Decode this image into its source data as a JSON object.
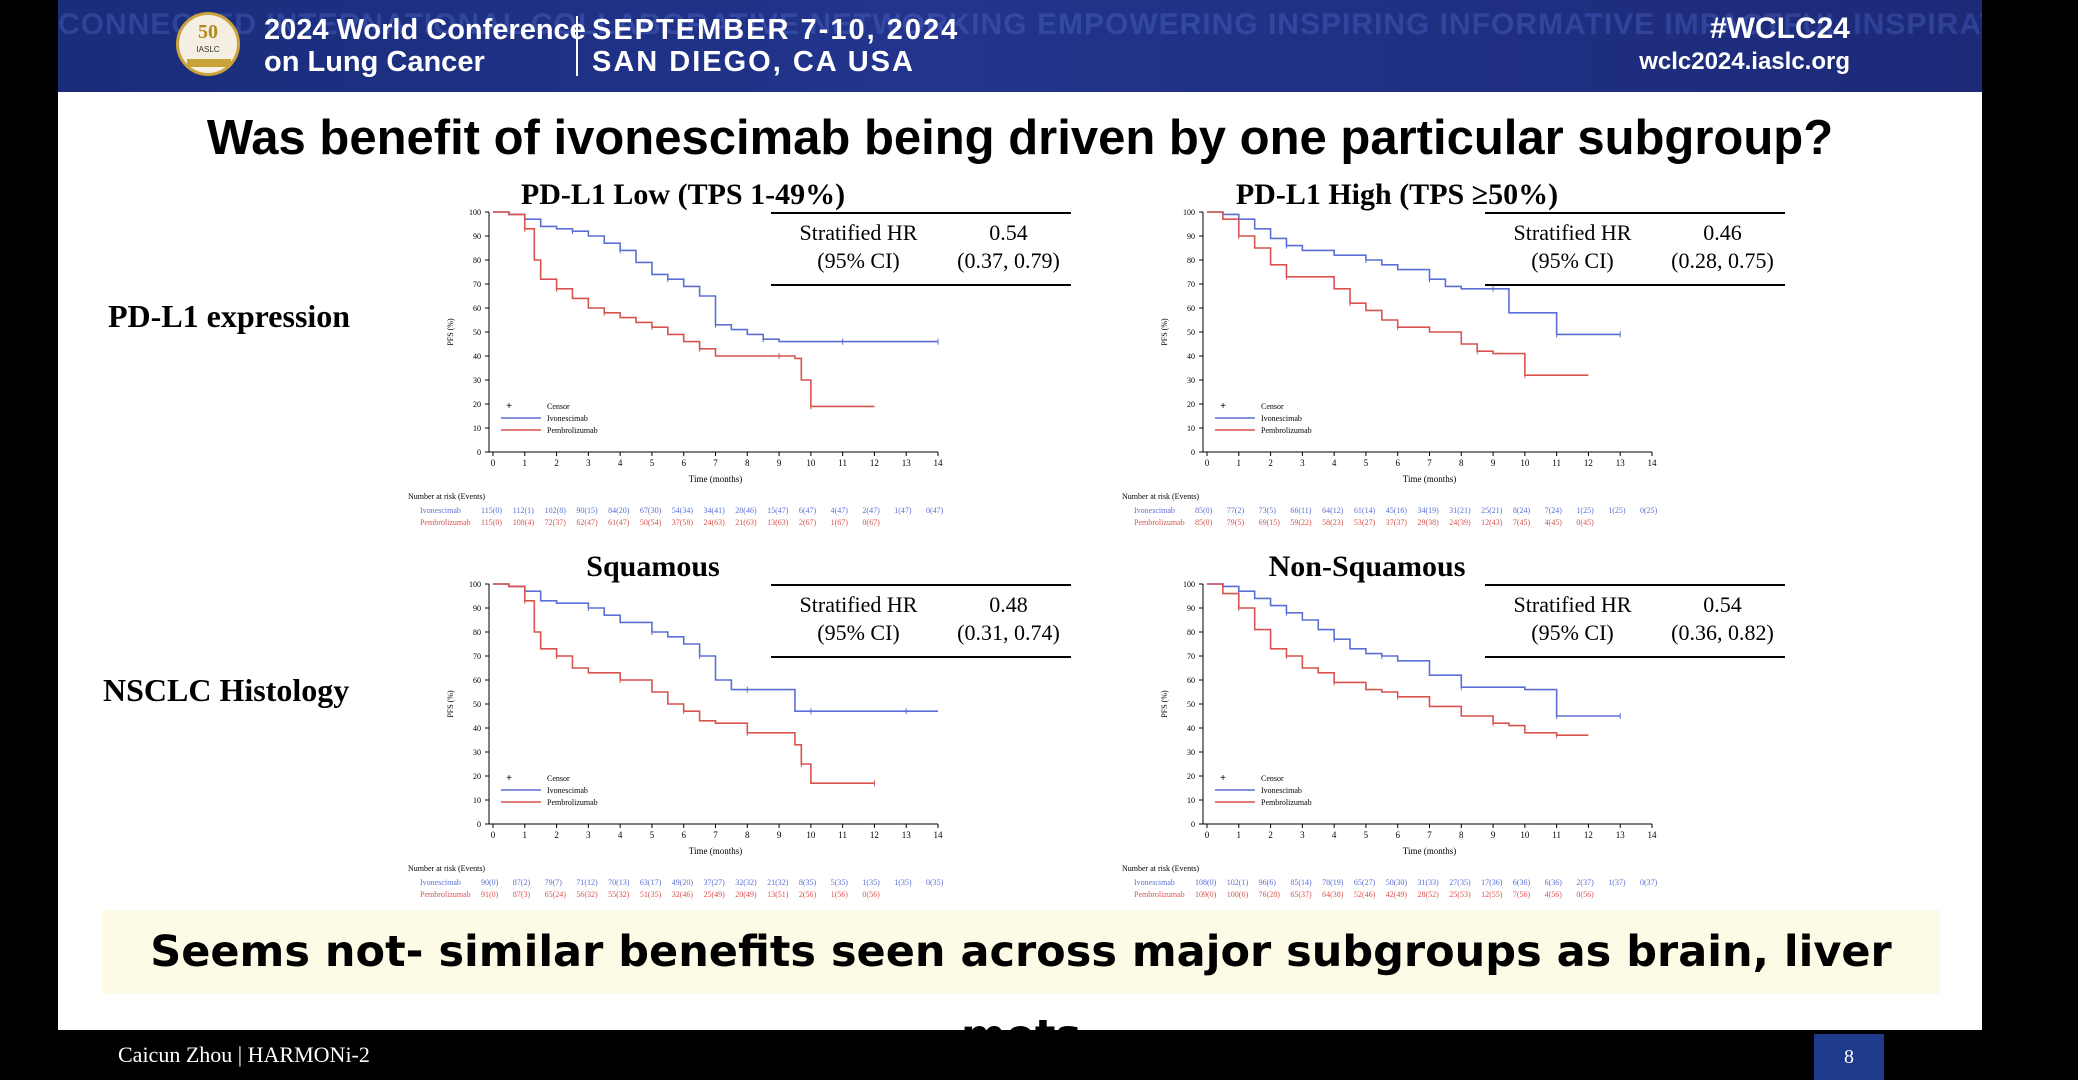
{
  "banner": {
    "watermark": "CONNECTED INTERNATIONAL COLLABORATIVE NETWORKING EMPOWERING INSPIRING INFORMATIVE IMPACTFUL INSPIRATIONAL INFORMATIVE MULTIDISCIPLINARY",
    "logo_number": "50",
    "logo_text": "IASLC",
    "conference_line1": "2024 World Conference",
    "conference_line2": "on Lung Cancer",
    "date": "SEPTEMBER 7-10, 2024",
    "location": "SAN DIEGO, CA USA",
    "hashtag": "#WCLC24",
    "website": "wclc2024.iaslc.org"
  },
  "slide": {
    "title": "Was benefit of ivonescimab being driven by one particular subgroup?",
    "row_labels": [
      "PD-L1 expression",
      "NSCLC Histology"
    ],
    "summary": "Seems not- similar benefits seen across major subgroups as brain, liver mets"
  },
  "footer": {
    "author": "Caicun Zhou | HARMONi-2",
    "page": "8"
  },
  "colors": {
    "ivonescimab": "#5b6fd6",
    "pembrolizumab": "#d9534f",
    "banner": "#22348c"
  },
  "chart_data": [
    {
      "type": "line",
      "title": "PD-L1 Low (TPS 1-49%)",
      "hr_label": "Stratified HR",
      "ci_label": "(95% CI)",
      "hr": "0.54",
      "ci": "(0.37, 0.79)",
      "xlabel": "Time (months)",
      "ylabel": "PFS (%)",
      "xlim": [
        0,
        14
      ],
      "ylim": [
        0,
        100
      ],
      "xticks": [
        "0",
        "1",
        "2",
        "3",
        "4",
        "5",
        "6",
        "7",
        "8",
        "9",
        "10",
        "11",
        "12",
        "13",
        "14"
      ],
      "yticks": [
        "0",
        "10",
        "20",
        "30",
        "40",
        "50",
        "60",
        "70",
        "80",
        "90",
        "100"
      ],
      "legend": [
        "Censor",
        "Ivonescimab",
        "Pembrolizumab"
      ],
      "series": [
        {
          "name": "Ivonescimab",
          "x": [
            0,
            0.5,
            1,
            1.5,
            2,
            2.5,
            3,
            3.5,
            4,
            4.5,
            5,
            5.5,
            6,
            6.5,
            7,
            7.5,
            8,
            8.5,
            9,
            10,
            11,
            12,
            13,
            14
          ],
          "y": [
            100,
            99,
            97,
            94,
            93,
            92,
            90,
            87,
            84,
            79,
            74,
            72,
            69,
            65,
            53,
            51,
            49,
            47,
            46,
            46,
            46,
            46,
            46,
            46
          ]
        },
        {
          "name": "Pembrolizumab",
          "x": [
            0,
            0.5,
            1,
            1.3,
            1.5,
            2,
            2.5,
            3,
            3.5,
            4,
            4.5,
            5,
            5.5,
            6,
            6.5,
            7,
            8,
            9,
            9.5,
            9.7,
            10,
            11,
            12
          ],
          "y": [
            100,
            99,
            93,
            80,
            72,
            68,
            64,
            60,
            58,
            56,
            54,
            52,
            49,
            46,
            43,
            40,
            40,
            40,
            39,
            30,
            19,
            19,
            19
          ]
        }
      ],
      "risk_title": "Number at risk (Events)",
      "risk": [
        {
          "name": "Ivonescimab",
          "values": [
            "115(0)",
            "112(1)",
            "102(8)",
            "90(15)",
            "84(20)",
            "67(30)",
            "54(34)",
            "34(41)",
            "28(46)",
            "15(47)",
            "6(47)",
            "4(47)",
            "2(47)",
            "1(47)",
            "0(47)"
          ]
        },
        {
          "name": "Pembrolizumab",
          "values": [
            "115(0)",
            "108(4)",
            "72(37)",
            "62(47)",
            "61(47)",
            "50(54)",
            "37(58)",
            "24(63)",
            "21(63)",
            "13(63)",
            "2(67)",
            "1(67)",
            "0(67)"
          ]
        }
      ]
    },
    {
      "type": "line",
      "title": "PD-L1 High (TPS ≥50%)",
      "hr_label": "Stratified HR",
      "ci_label": "(95% CI)",
      "hr": "0.46",
      "ci": "(0.28, 0.75)",
      "xlabel": "Time (months)",
      "ylabel": "PFS (%)",
      "xlim": [
        0,
        14
      ],
      "ylim": [
        0,
        100
      ],
      "xticks": [
        "0",
        "1",
        "2",
        "3",
        "4",
        "5",
        "6",
        "7",
        "8",
        "9",
        "10",
        "11",
        "12",
        "13",
        "14"
      ],
      "yticks": [
        "0",
        "10",
        "20",
        "30",
        "40",
        "50",
        "60",
        "70",
        "80",
        "90",
        "100"
      ],
      "legend": [
        "Censor",
        "Ivonescimab",
        "Pembrolizumab"
      ],
      "series": [
        {
          "name": "Ivonescimab",
          "x": [
            0,
            0.5,
            1,
            1.5,
            2,
            2.5,
            3,
            4,
            5,
            5.5,
            6,
            7,
            7.5,
            8,
            9,
            9.5,
            10,
            11,
            11.5,
            12,
            13
          ],
          "y": [
            100,
            99,
            97,
            93,
            89,
            86,
            84,
            82,
            80,
            78,
            76,
            72,
            69,
            68,
            68,
            58,
            58,
            49,
            49,
            49,
            49
          ]
        },
        {
          "name": "Pembrolizumab",
          "x": [
            0,
            0.5,
            1,
            1.5,
            2,
            2.5,
            3,
            4,
            4.5,
            5,
            5.5,
            6,
            7,
            8,
            8.5,
            9,
            9.5,
            10,
            11,
            12
          ],
          "y": [
            100,
            97,
            90,
            85,
            78,
            73,
            73,
            68,
            62,
            59,
            55,
            52,
            50,
            45,
            42,
            41,
            41,
            32,
            32,
            32
          ]
        }
      ],
      "risk_title": "Number at risk (Events)",
      "risk": [
        {
          "name": "Ivonescimab",
          "values": [
            "85(0)",
            "77(2)",
            "73(5)",
            "66(11)",
            "64(12)",
            "61(14)",
            "45(16)",
            "34(19)",
            "31(21)",
            "25(21)",
            "8(24)",
            "7(24)",
            "1(25)",
            "1(25)",
            "0(25)"
          ]
        },
        {
          "name": "Pembrolizumab",
          "values": [
            "85(0)",
            "79(5)",
            "69(15)",
            "59(22)",
            "58(23)",
            "53(27)",
            "37(37)",
            "29(38)",
            "24(39)",
            "12(43)",
            "7(45)",
            "4(45)",
            "0(45)"
          ]
        }
      ]
    },
    {
      "type": "line",
      "title": "Squamous",
      "hr_label": "Stratified HR",
      "ci_label": "(95% CI)",
      "hr": "0.48",
      "ci": "(0.31, 0.74)",
      "xlabel": "Time (months)",
      "ylabel": "PFS (%)",
      "xlim": [
        0,
        14
      ],
      "ylim": [
        0,
        100
      ],
      "xticks": [
        "0",
        "1",
        "2",
        "3",
        "4",
        "5",
        "6",
        "7",
        "8",
        "9",
        "10",
        "11",
        "12",
        "13",
        "14"
      ],
      "yticks": [
        "0",
        "10",
        "20",
        "30",
        "40",
        "50",
        "60",
        "70",
        "80",
        "90",
        "100"
      ],
      "legend": [
        "Censor",
        "Ivonescimab",
        "Pembrolizumab"
      ],
      "series": [
        {
          "name": "Ivonescimab",
          "x": [
            0,
            0.5,
            1,
            1.5,
            2,
            3,
            3.5,
            4,
            5,
            5.5,
            6,
            6.5,
            7,
            7.5,
            8,
            9,
            9.5,
            10,
            11,
            12,
            13,
            14
          ],
          "y": [
            100,
            99,
            97,
            93,
            92,
            90,
            87,
            84,
            80,
            78,
            75,
            70,
            60,
            56,
            56,
            56,
            47,
            47,
            47,
            47,
            47,
            47
          ]
        },
        {
          "name": "Pembrolizumab",
          "x": [
            0,
            0.5,
            1,
            1.3,
            1.5,
            2,
            2.5,
            3,
            4,
            5,
            5.5,
            6,
            6.5,
            7,
            8,
            9,
            9.5,
            9.7,
            10,
            11,
            12
          ],
          "y": [
            100,
            99,
            93,
            80,
            73,
            70,
            65,
            63,
            60,
            55,
            50,
            47,
            43,
            42,
            38,
            38,
            33,
            25,
            17,
            17,
            17
          ]
        }
      ],
      "risk_title": "Number at risk (Events)",
      "risk": [
        {
          "name": "Ivonescimab",
          "values": [
            "90(0)",
            "87(2)",
            "79(7)",
            "71(12)",
            "70(13)",
            "63(17)",
            "49(20)",
            "37(27)",
            "32(32)",
            "21(32)",
            "8(35)",
            "5(35)",
            "1(35)",
            "1(35)",
            "0(35)"
          ]
        },
        {
          "name": "Pembrolizumab",
          "values": [
            "91(0)",
            "87(3)",
            "65(24)",
            "56(32)",
            "55(32)",
            "51(35)",
            "32(46)",
            "25(49)",
            "20(49)",
            "13(51)",
            "2(56)",
            "1(56)",
            "0(56)"
          ]
        }
      ]
    },
    {
      "type": "line",
      "title": "Non-Squamous",
      "hr_label": "Stratified HR",
      "ci_label": "(95% CI)",
      "hr": "0.54",
      "ci": "(0.36, 0.82)",
      "xlabel": "Time (months)",
      "ylabel": "PFS (%)",
      "xlim": [
        0,
        14
      ],
      "ylim": [
        0,
        100
      ],
      "xticks": [
        "0",
        "1",
        "2",
        "3",
        "4",
        "5",
        "6",
        "7",
        "8",
        "9",
        "10",
        "11",
        "12",
        "13",
        "14"
      ],
      "yticks": [
        "0",
        "10",
        "20",
        "30",
        "40",
        "50",
        "60",
        "70",
        "80",
        "90",
        "100"
      ],
      "legend": [
        "Censor",
        "Ivonescimab",
        "Pembrolizumab"
      ],
      "series": [
        {
          "name": "Ivonescimab",
          "x": [
            0,
            0.5,
            1,
            1.5,
            2,
            2.5,
            3,
            3.5,
            4,
            4.5,
            5,
            5.5,
            6,
            7,
            8,
            9,
            10,
            11,
            11.5,
            12,
            13
          ],
          "y": [
            100,
            99,
            97,
            94,
            91,
            88,
            85,
            81,
            77,
            73,
            71,
            70,
            68,
            62,
            57,
            57,
            56,
            45,
            45,
            45,
            45
          ]
        },
        {
          "name": "Pembrolizumab",
          "x": [
            0,
            0.5,
            1,
            1.5,
            2,
            2.5,
            3,
            3.5,
            4,
            5,
            5.5,
            6,
            7,
            8,
            9,
            9.5,
            10,
            11,
            12
          ],
          "y": [
            100,
            96,
            90,
            81,
            73,
            70,
            65,
            63,
            59,
            56,
            55,
            53,
            49,
            45,
            42,
            41,
            38,
            37,
            37
          ]
        }
      ],
      "risk_title": "Number at risk (Events)",
      "risk": [
        {
          "name": "Ivonescimab",
          "values": [
            "108(0)",
            "102(1)",
            "96(6)",
            "85(14)",
            "78(19)",
            "65(27)",
            "50(30)",
            "31(33)",
            "27(35)",
            "17(36)",
            "6(36)",
            "6(36)",
            "2(37)",
            "1(37)",
            "0(37)"
          ]
        },
        {
          "name": "Pembrolizumab",
          "values": [
            "109(0)",
            "100(6)",
            "76(28)",
            "65(37)",
            "64(38)",
            "52(46)",
            "42(49)",
            "28(52)",
            "25(53)",
            "12(55)",
            "7(56)",
            "4(56)",
            "0(56)"
          ]
        }
      ]
    }
  ]
}
